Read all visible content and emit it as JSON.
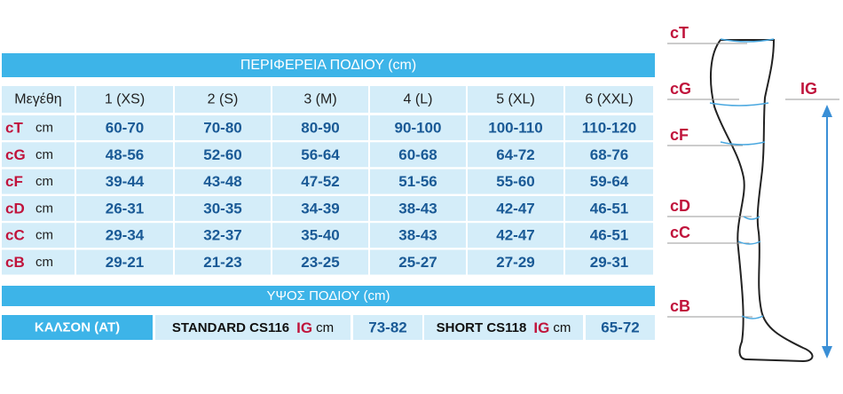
{
  "header": {
    "title": "ΠΕΡΙΦΕΡΕΙΑ ΠΟΔΙΟΥ (cm)"
  },
  "table": {
    "columns": [
      "Μεγέθη",
      "1 (XS)",
      "2 (S)",
      "3 (M)",
      "4 (L)",
      "5 (XL)",
      "6 (XXL)"
    ],
    "rows": [
      {
        "label": "cT",
        "unit": "cm",
        "values": [
          "60-70",
          "70-80",
          "80-90",
          "90-100",
          "100-110",
          "110-120"
        ]
      },
      {
        "label": "cG",
        "unit": "cm",
        "values": [
          "48-56",
          "52-60",
          "56-64",
          "60-68",
          "64-72",
          "68-76"
        ]
      },
      {
        "label": "cF",
        "unit": "cm",
        "values": [
          "39-44",
          "43-48",
          "47-52",
          "51-56",
          "55-60",
          "59-64"
        ]
      },
      {
        "label": "cD",
        "unit": "cm",
        "values": [
          "26-31",
          "30-35",
          "34-39",
          "38-43",
          "42-47",
          "46-51"
        ]
      },
      {
        "label": "cC",
        "unit": "cm",
        "values": [
          "29-34",
          "32-37",
          "35-40",
          "38-43",
          "42-47",
          "46-51"
        ]
      },
      {
        "label": "cB",
        "unit": "cm",
        "values": [
          "29-21",
          "21-23",
          "23-25",
          "25-27",
          "27-29",
          "29-31"
        ]
      }
    ]
  },
  "height_section": {
    "title": "ΥΨΟΣ ΠΟΔΙΟΥ (cm)",
    "product": "ΚΑΛΣΟΝ (AT)",
    "standard": {
      "name": "STANDARD CS116",
      "measure": "IG",
      "unit": "cm",
      "value": "73-82"
    },
    "short": {
      "name": "SHORT CS118",
      "measure": "IG",
      "unit": "cm",
      "value": "65-72"
    }
  },
  "diagram": {
    "labels": [
      "cT",
      "cG",
      "cF",
      "cD",
      "cC",
      "cB"
    ],
    "height_label": "IG"
  }
}
